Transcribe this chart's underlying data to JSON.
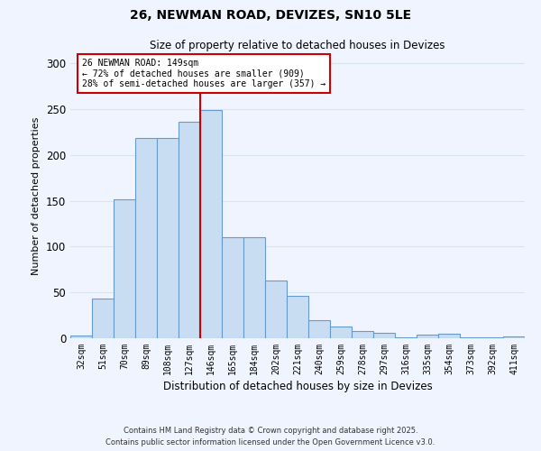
{
  "title": "26, NEWMAN ROAD, DEVIZES, SN10 5LE",
  "subtitle": "Size of property relative to detached houses in Devizes",
  "xlabel": "Distribution of detached houses by size in Devizes",
  "ylabel": "Number of detached properties",
  "categories": [
    "32sqm",
    "51sqm",
    "70sqm",
    "89sqm",
    "108sqm",
    "127sqm",
    "146sqm",
    "165sqm",
    "184sqm",
    "202sqm",
    "221sqm",
    "240sqm",
    "259sqm",
    "278sqm",
    "297sqm",
    "316sqm",
    "335sqm",
    "354sqm",
    "373sqm",
    "392sqm",
    "411sqm"
  ],
  "values": [
    3,
    43,
    152,
    218,
    218,
    236,
    249,
    110,
    110,
    63,
    46,
    20,
    13,
    8,
    6,
    1,
    4,
    5,
    1,
    1,
    2
  ],
  "bar_color": "#c9ddf2",
  "bar_edge_color": "#6699cc",
  "property_line_index": 6,
  "property_label": "26 NEWMAN ROAD: 149sqm",
  "annotation_line1": "← 72% of detached houses are smaller (909)",
  "annotation_line2": "28% of semi-detached houses are larger (357) →",
  "annotation_box_color": "#cc0000",
  "ylim": [
    0,
    310
  ],
  "yticks": [
    0,
    50,
    100,
    150,
    200,
    250,
    300
  ],
  "background_color": "#f0f4ff",
  "grid_color": "#d8e4f0",
  "footer1": "Contains HM Land Registry data © Crown copyright and database right 2025.",
  "footer2": "Contains public sector information licensed under the Open Government Licence v3.0."
}
